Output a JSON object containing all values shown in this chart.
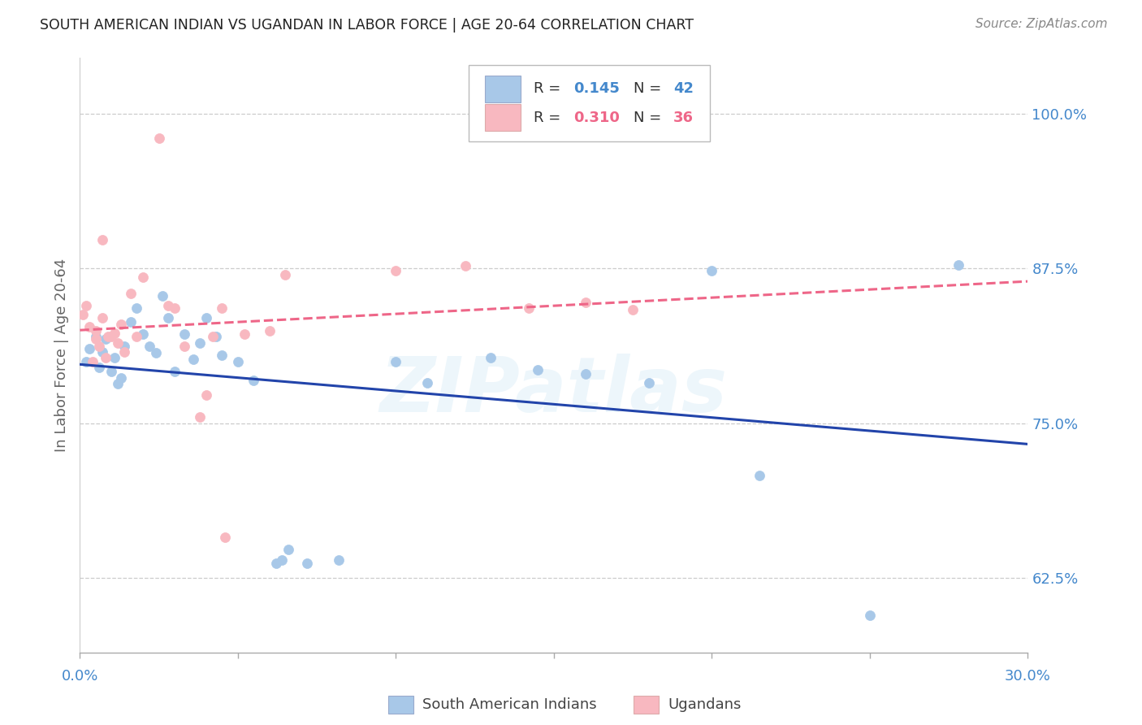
{
  "title": "SOUTH AMERICAN INDIAN VS UGANDAN IN LABOR FORCE | AGE 20-64 CORRELATION CHART",
  "source": "Source: ZipAtlas.com",
  "ylabel": "In Labor Force | Age 20-64",
  "xlim": [
    0.0,
    0.3
  ],
  "ylim": [
    0.565,
    1.045
  ],
  "yticks": [
    0.625,
    0.75,
    0.875,
    1.0
  ],
  "ytick_labels": [
    "62.5%",
    "75.0%",
    "87.5%",
    "100.0%"
  ],
  "xticks": [
    0.0,
    0.05,
    0.1,
    0.15,
    0.2,
    0.25,
    0.3
  ],
  "watermark": "ZIPatlas",
  "blue_color": "#A8C8E8",
  "pink_color": "#F8B8C0",
  "blue_line_color": "#2244AA",
  "pink_line_color": "#EE6688",
  "axis_color": "#4488CC",
  "grid_color": "#CCCCCC",
  "title_color": "#222222",
  "source_color": "#888888",
  "legend_blue_r": "0.145",
  "legend_blue_n": "42",
  "legend_pink_r": "0.310",
  "legend_pink_n": "36",
  "blue_scatter": [
    [
      0.002,
      0.8
    ],
    [
      0.003,
      0.81
    ],
    [
      0.005,
      0.82
    ],
    [
      0.006,
      0.795
    ],
    [
      0.007,
      0.808
    ],
    [
      0.008,
      0.818
    ],
    [
      0.01,
      0.792
    ],
    [
      0.011,
      0.803
    ],
    [
      0.012,
      0.782
    ],
    [
      0.013,
      0.787
    ],
    [
      0.014,
      0.812
    ],
    [
      0.016,
      0.832
    ],
    [
      0.018,
      0.843
    ],
    [
      0.02,
      0.822
    ],
    [
      0.022,
      0.812
    ],
    [
      0.024,
      0.807
    ],
    [
      0.026,
      0.853
    ],
    [
      0.028,
      0.835
    ],
    [
      0.03,
      0.792
    ],
    [
      0.033,
      0.822
    ],
    [
      0.036,
      0.802
    ],
    [
      0.038,
      0.815
    ],
    [
      0.04,
      0.835
    ],
    [
      0.043,
      0.82
    ],
    [
      0.045,
      0.805
    ],
    [
      0.05,
      0.8
    ],
    [
      0.055,
      0.785
    ],
    [
      0.062,
      0.637
    ],
    [
      0.064,
      0.64
    ],
    [
      0.066,
      0.648
    ],
    [
      0.072,
      0.637
    ],
    [
      0.082,
      0.64
    ],
    [
      0.1,
      0.8
    ],
    [
      0.11,
      0.783
    ],
    [
      0.13,
      0.803
    ],
    [
      0.145,
      0.793
    ],
    [
      0.16,
      0.79
    ],
    [
      0.18,
      0.783
    ],
    [
      0.2,
      0.873
    ],
    [
      0.215,
      0.708
    ],
    [
      0.25,
      0.595
    ],
    [
      0.278,
      0.878
    ]
  ],
  "pink_scatter": [
    [
      0.001,
      0.838
    ],
    [
      0.002,
      0.845
    ],
    [
      0.003,
      0.828
    ],
    [
      0.004,
      0.8
    ],
    [
      0.005,
      0.818
    ],
    [
      0.005,
      0.825
    ],
    [
      0.006,
      0.812
    ],
    [
      0.007,
      0.835
    ],
    [
      0.007,
      0.898
    ],
    [
      0.008,
      0.803
    ],
    [
      0.009,
      0.82
    ],
    [
      0.01,
      0.82
    ],
    [
      0.011,
      0.823
    ],
    [
      0.012,
      0.815
    ],
    [
      0.013,
      0.83
    ],
    [
      0.014,
      0.808
    ],
    [
      0.016,
      0.855
    ],
    [
      0.018,
      0.82
    ],
    [
      0.02,
      0.868
    ],
    [
      0.025,
      0.98
    ],
    [
      0.028,
      0.845
    ],
    [
      0.03,
      0.843
    ],
    [
      0.033,
      0.812
    ],
    [
      0.038,
      0.755
    ],
    [
      0.04,
      0.773
    ],
    [
      0.042,
      0.82
    ],
    [
      0.045,
      0.843
    ],
    [
      0.046,
      0.658
    ],
    [
      0.052,
      0.822
    ],
    [
      0.06,
      0.825
    ],
    [
      0.065,
      0.87
    ],
    [
      0.1,
      0.873
    ],
    [
      0.122,
      0.877
    ],
    [
      0.142,
      0.843
    ],
    [
      0.16,
      0.848
    ],
    [
      0.175,
      0.842
    ]
  ]
}
